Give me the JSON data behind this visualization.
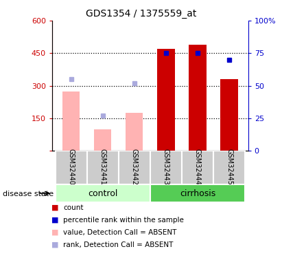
{
  "title": "GDS1354 / 1375559_at",
  "samples": [
    "GSM32440",
    "GSM32441",
    "GSM32442",
    "GSM32443",
    "GSM32444",
    "GSM32445"
  ],
  "bar_values_red": [
    null,
    null,
    null,
    470,
    490,
    330
  ],
  "bar_values_pink": [
    275,
    100,
    175,
    null,
    null,
    null
  ],
  "dot_blue": [
    null,
    null,
    null,
    75,
    75,
    70
  ],
  "dot_lightblue": [
    55,
    27,
    52,
    null,
    null,
    null
  ],
  "ylim_left": [
    0,
    600
  ],
  "ylim_right": [
    0,
    100
  ],
  "yticks_left": [
    0,
    150,
    300,
    450,
    600
  ],
  "ytick_labels_left": [
    "",
    "150",
    "300",
    "450",
    "600"
  ],
  "yticks_right": [
    0,
    25,
    50,
    75,
    100
  ],
  "ytick_labels_right": [
    "0",
    "25",
    "50",
    "75",
    "100%"
  ],
  "gridlines": [
    150,
    300,
    450
  ],
  "color_red": "#cc0000",
  "color_pink": "#ffb3b3",
  "color_blue": "#0000cc",
  "color_lightblue": "#aaaadd",
  "color_control_bg": "#ccffcc",
  "color_cirrhosis_bg": "#55cc55",
  "color_sample_bg": "#cccccc",
  "control_label": "control",
  "cirrhosis_label": "cirrhosis",
  "disease_state_label": "disease state",
  "legend_items": [
    {
      "label": "count",
      "color": "#cc0000"
    },
    {
      "label": "percentile rank within the sample",
      "color": "#0000cc"
    },
    {
      "label": "value, Detection Call = ABSENT",
      "color": "#ffb3b3"
    },
    {
      "label": "rank, Detection Call = ABSENT",
      "color": "#aaaadd"
    }
  ]
}
